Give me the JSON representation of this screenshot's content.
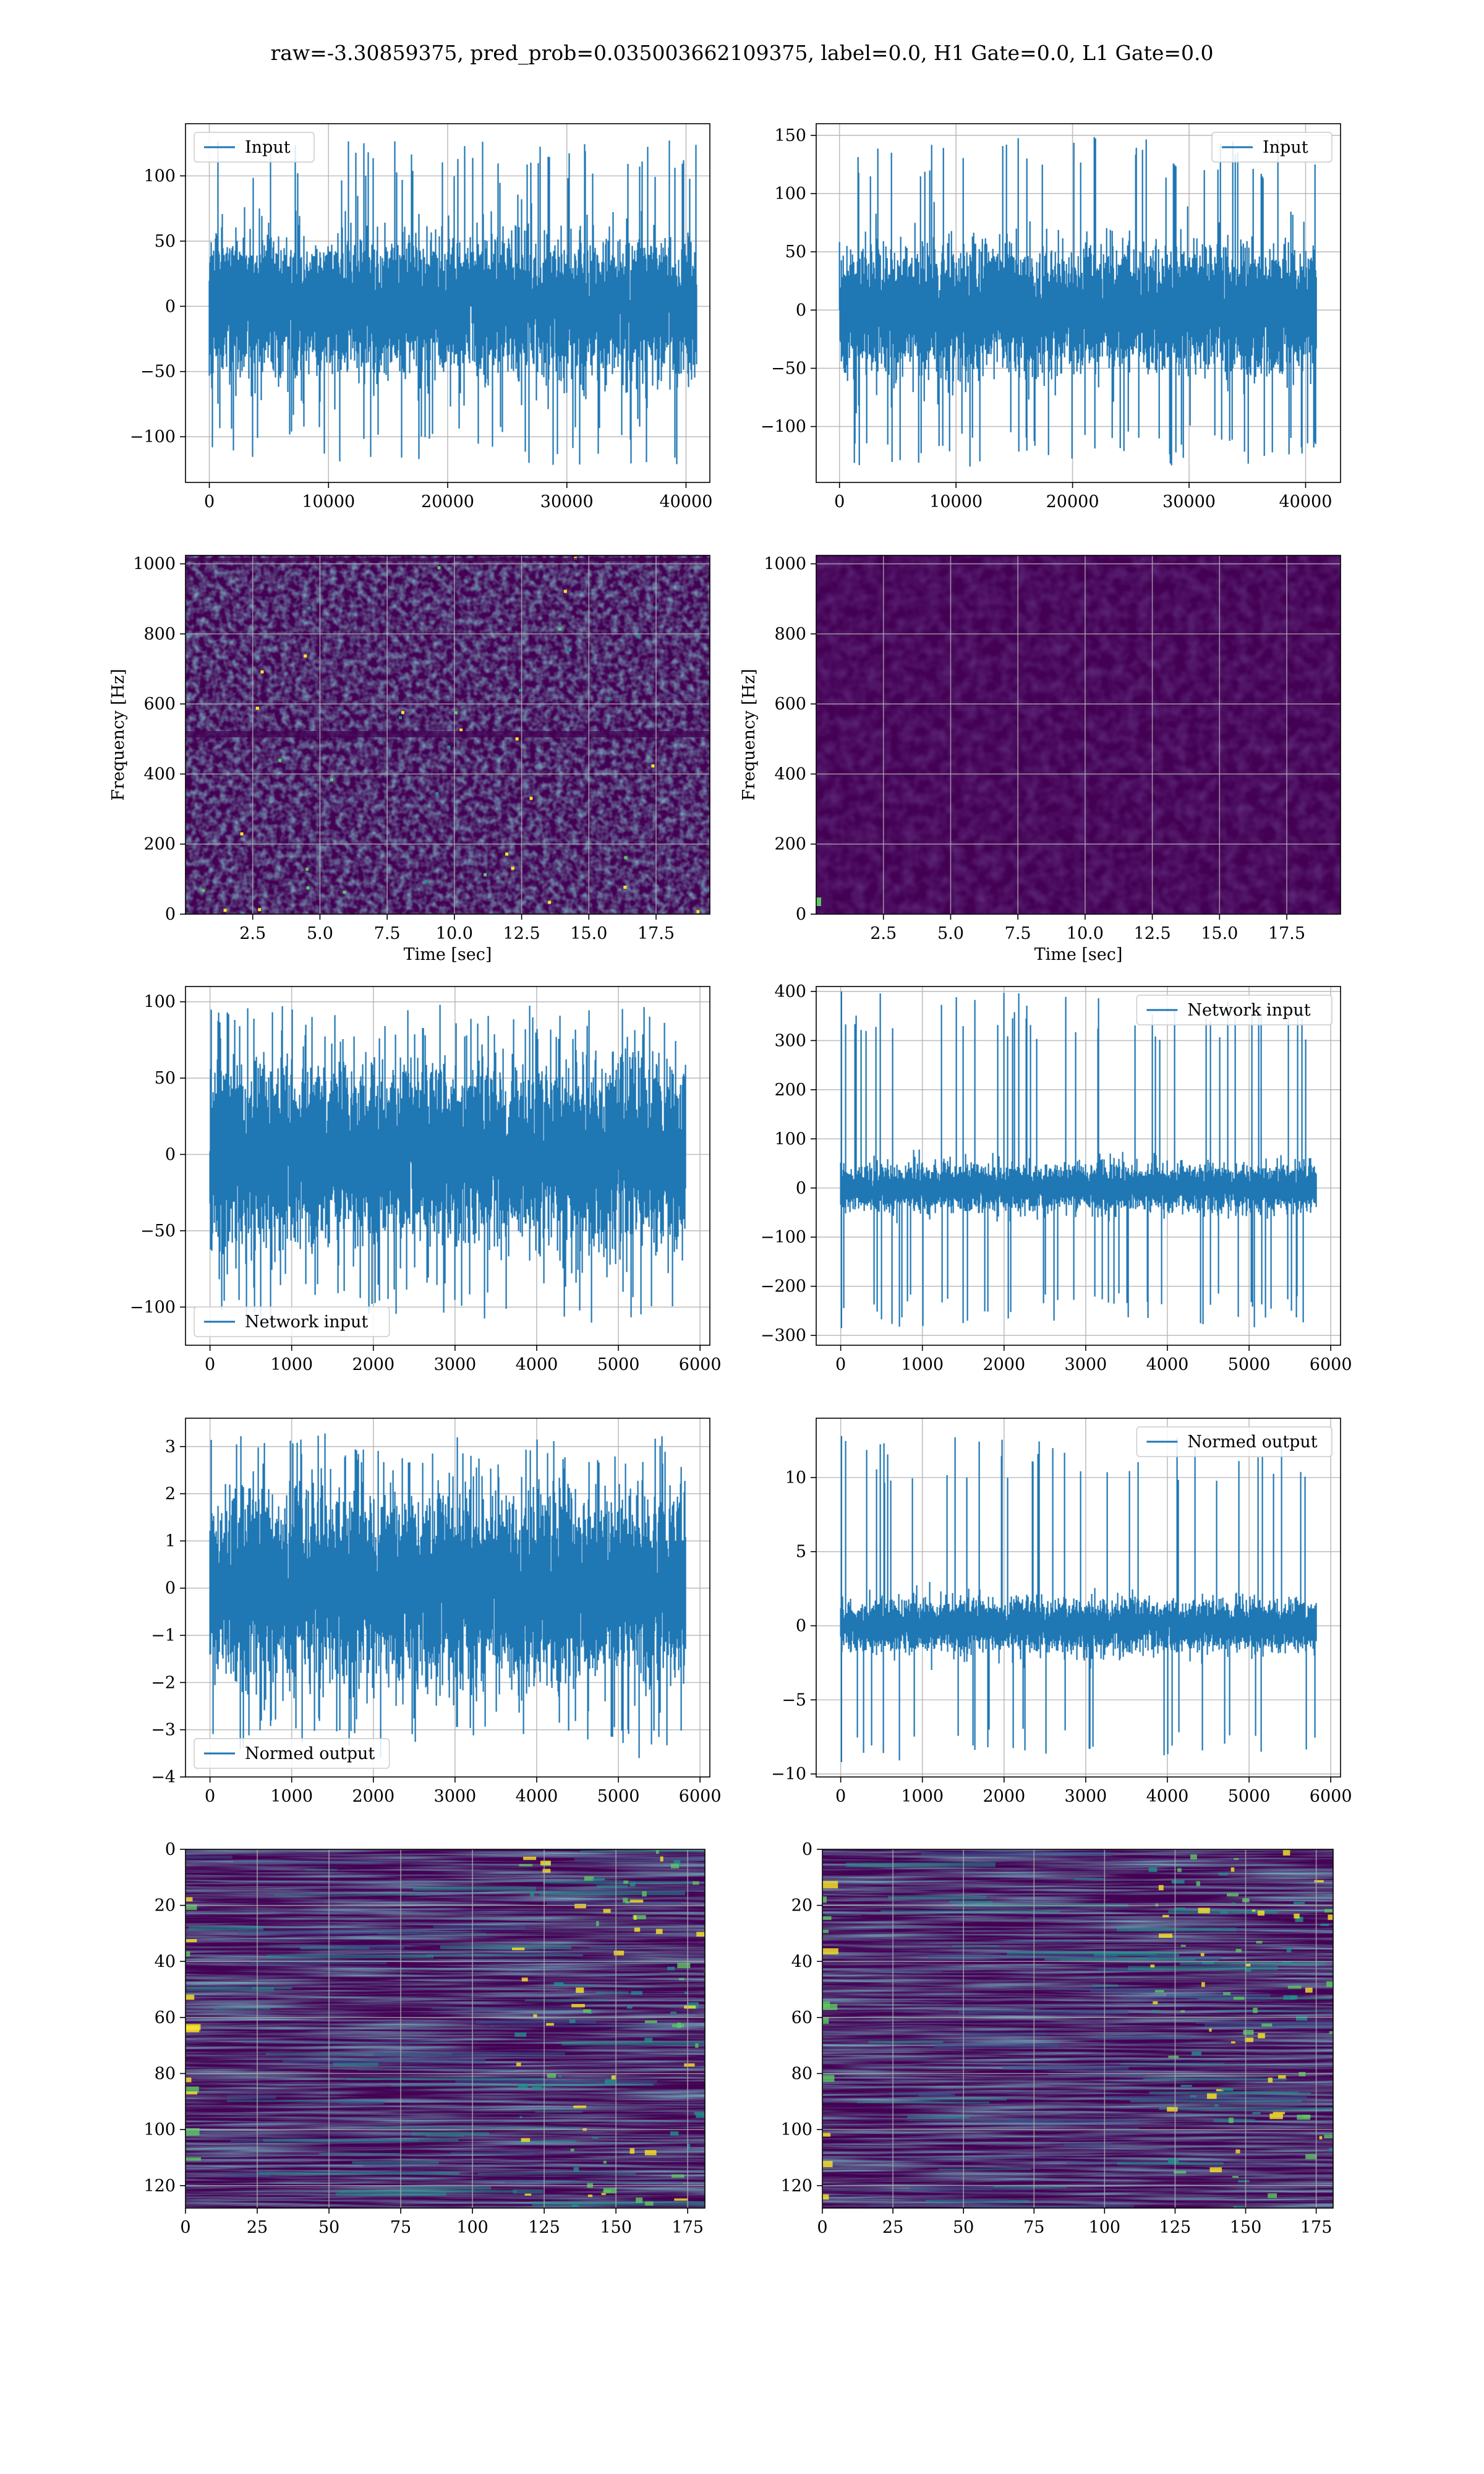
{
  "figure_title": "raw=-3.30859375, pred_prob=0.035003662109375, label=0.0, H1 Gate=0.0, L1 Gate=0.0",
  "colors": {
    "line": "#1f77b4",
    "grid": "#b0b0b0",
    "axes": "#000000",
    "viridis": [
      "#440154",
      "#3b528b",
      "#21918c",
      "#5ec962",
      "#fde725"
    ]
  },
  "chart_data": [
    {
      "type": "line",
      "id": "input-h1",
      "legend": "Input",
      "legend_loc": "upper left",
      "grid": true,
      "xlim": [
        -2000,
        42000
      ],
      "ylim": [
        -135,
        140
      ],
      "xticks": [
        0,
        10000,
        20000,
        30000,
        40000
      ],
      "xtick_labels": [
        "0",
        "10000",
        "20000",
        "30000",
        "40000"
      ],
      "yticks": [
        -100,
        -50,
        0,
        50,
        100
      ],
      "ytick_labels": [
        "−100",
        "−50",
        "0",
        "50",
        "100"
      ],
      "signal": {
        "n_points": 40960,
        "x_end": 40960,
        "sigma": 25,
        "max": 128,
        "min": -122
      }
    },
    {
      "type": "line",
      "id": "input-l1",
      "legend": "Input",
      "legend_loc": "upper right",
      "grid": true,
      "xlim": [
        -2000,
        43000
      ],
      "ylim": [
        -148,
        160
      ],
      "xticks": [
        0,
        10000,
        20000,
        30000,
        40000
      ],
      "xtick_labels": [
        "0",
        "10000",
        "20000",
        "30000",
        "40000"
      ],
      "yticks": [
        -100,
        -50,
        0,
        50,
        100,
        150
      ],
      "ytick_labels": [
        "−100",
        "−50",
        "0",
        "50",
        "100",
        "150"
      ],
      "signal": {
        "n_points": 40960,
        "x_end": 40960,
        "sigma": 25,
        "max": 150,
        "min": -135
      }
    },
    {
      "type": "heatmap",
      "id": "spectrogram-h1",
      "grid": true,
      "xlabel": "Time [sec]",
      "ylabel": "Frequency [Hz]",
      "xlim": [
        0,
        19.5
      ],
      "ylim": [
        0,
        1024
      ],
      "xticks": [
        2.5,
        5.0,
        7.5,
        10.0,
        12.5,
        15.0,
        17.5
      ],
      "xtick_labels": [
        "2.5",
        "5.0",
        "7.5",
        "10.0",
        "12.5",
        "15.0",
        "17.5"
      ],
      "yticks": [
        0,
        200,
        400,
        600,
        800,
        1000
      ],
      "ytick_labels": [
        "0",
        "200",
        "400",
        "600",
        "800",
        "1000"
      ],
      "texture": "bright-noise"
    },
    {
      "type": "heatmap",
      "id": "spectrogram-l1",
      "grid": true,
      "xlabel": "Time [sec]",
      "ylabel": "Frequency [Hz]",
      "xlim": [
        0,
        19.5
      ],
      "ylim": [
        0,
        1024
      ],
      "xticks": [
        2.5,
        5.0,
        7.5,
        10.0,
        12.5,
        15.0,
        17.5
      ],
      "xtick_labels": [
        "2.5",
        "5.0",
        "7.5",
        "10.0",
        "12.5",
        "15.0",
        "17.5"
      ],
      "yticks": [
        0,
        200,
        400,
        600,
        800,
        1000
      ],
      "ytick_labels": [
        "0",
        "200",
        "400",
        "600",
        "800",
        "1000"
      ],
      "texture": "dark-noise"
    },
    {
      "type": "line",
      "id": "network-input-h1",
      "legend": "Network input",
      "legend_loc": "lower left",
      "grid": true,
      "xlim": [
        -300,
        6120
      ],
      "ylim": [
        -125,
        110
      ],
      "xticks": [
        0,
        1000,
        2000,
        3000,
        4000,
        5000,
        6000
      ],
      "xtick_labels": [
        "0",
        "1000",
        "2000",
        "3000",
        "4000",
        "5000",
        "6000"
      ],
      "yticks": [
        -100,
        -50,
        0,
        50,
        100
      ],
      "ytick_labels": [
        "−100",
        "−50",
        "0",
        "50",
        "100"
      ],
      "signal": {
        "n_points": 5830,
        "x_end": 5830,
        "sigma": 28,
        "max": 98,
        "min": -112
      }
    },
    {
      "type": "line",
      "id": "network-input-l1",
      "legend": "Network input",
      "legend_loc": "upper right",
      "grid": true,
      "xlim": [
        -300,
        6120
      ],
      "ylim": [
        -320,
        410
      ],
      "xticks": [
        0,
        1000,
        2000,
        3000,
        4000,
        5000,
        6000
      ],
      "xtick_labels": [
        "0",
        "1000",
        "2000",
        "3000",
        "4000",
        "5000",
        "6000"
      ],
      "yticks": [
        -300,
        -200,
        -100,
        0,
        100,
        200,
        300,
        400
      ],
      "ytick_labels": [
        "−300",
        "−200",
        "−100",
        "0",
        "100",
        "200",
        "300",
        "400"
      ],
      "signal": {
        "n_points": 5830,
        "x_end": 5830,
        "sigma": 22,
        "max": 400,
        "min": -285,
        "spike_x": 10
      }
    },
    {
      "type": "line",
      "id": "normed-output-h1",
      "legend": "Normed output",
      "legend_loc": "lower left",
      "grid": true,
      "xlim": [
        -300,
        6120
      ],
      "ylim": [
        -4,
        3.6
      ],
      "xticks": [
        0,
        1000,
        2000,
        3000,
        4000,
        5000,
        6000
      ],
      "xtick_labels": [
        "0",
        "1000",
        "2000",
        "3000",
        "4000",
        "5000",
        "6000"
      ],
      "yticks": [
        -4,
        -3,
        -2,
        -1,
        0,
        1,
        2,
        3
      ],
      "ytick_labels": [
        "−4",
        "−3",
        "−2",
        "−1",
        "0",
        "1",
        "2",
        "3"
      ],
      "signal": {
        "n_points": 5830,
        "x_end": 5830,
        "sigma": 0.95,
        "max": 3.3,
        "min": -3.6
      }
    },
    {
      "type": "line",
      "id": "normed-output-l1",
      "legend": "Normed output",
      "legend_loc": "upper right",
      "grid": true,
      "xlim": [
        -300,
        6120
      ],
      "ylim": [
        -10.2,
        14
      ],
      "xticks": [
        0,
        1000,
        2000,
        3000,
        4000,
        5000,
        6000
      ],
      "xtick_labels": [
        "0",
        "1000",
        "2000",
        "3000",
        "4000",
        "5000",
        "6000"
      ],
      "yticks": [
        -10,
        -5,
        0,
        5,
        10
      ],
      "ytick_labels": [
        "−10",
        "−5",
        "0",
        "5",
        "10"
      ],
      "signal": {
        "n_points": 5830,
        "x_end": 5830,
        "sigma": 0.8,
        "max": 12.8,
        "min": -9.2,
        "spike_x": 10
      }
    },
    {
      "type": "heatmap",
      "id": "feature-map-h1",
      "grid": true,
      "xlim": [
        0,
        181
      ],
      "ylim": [
        128,
        0
      ],
      "xticks": [
        0,
        25,
        50,
        75,
        100,
        125,
        150,
        175
      ],
      "xtick_labels": [
        "0",
        "25",
        "50",
        "75",
        "100",
        "125",
        "150",
        "175"
      ],
      "yticks": [
        0,
        20,
        40,
        60,
        80,
        100,
        120
      ],
      "ytick_labels": [
        "0",
        "20",
        "40",
        "60",
        "80",
        "100",
        "120"
      ],
      "texture": "rows"
    },
    {
      "type": "heatmap",
      "id": "feature-map-l1",
      "grid": true,
      "xlim": [
        0,
        181
      ],
      "ylim": [
        128,
        0
      ],
      "xticks": [
        0,
        25,
        50,
        75,
        100,
        125,
        150,
        175
      ],
      "xtick_labels": [
        "0",
        "25",
        "50",
        "75",
        "100",
        "125",
        "150",
        "175"
      ],
      "yticks": [
        0,
        20,
        40,
        60,
        80,
        100,
        120
      ],
      "ytick_labels": [
        "0",
        "20",
        "40",
        "60",
        "80",
        "100",
        "120"
      ],
      "texture": "rows"
    }
  ]
}
